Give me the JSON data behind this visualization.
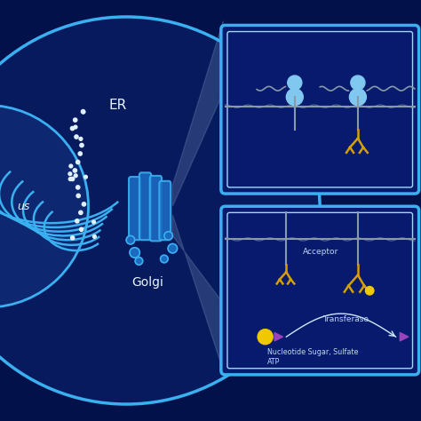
{
  "bg_color": "#02114a",
  "cell_fill": "#071a5e",
  "cell_border": "#3ab0f0",
  "nucleus_fill": "#0a1e6a",
  "nucleus_border": "#3ab0f0",
  "er_color": "#3ab0f0",
  "golgi_color": "#3ab0f0",
  "box_fill": "#071a6e",
  "box_border_outer": "#3ab0f0",
  "box_border_inner": "#a0d8ff",
  "beam_color": "#b0cce8",
  "text_white": "#e8f4ff",
  "text_label": "#c0d8f0",
  "yellow": "#f0c800",
  "gold": "#d4a000",
  "purple": "#9944bb",
  "gray": "#8899aa",
  "light_blue_protein": "#80c8f0",
  "ribosome_color": "#e0f0ff",
  "golgi_fill": "#1a6ac0",
  "label_er": "ER",
  "label_golgi": "Golgi",
  "label_nucleus": "us",
  "label_acceptor": "Acceptor",
  "label_transferase": "Transferase",
  "label_nucleotide": "Nucleotide Sugar, Sulfate\nATP"
}
